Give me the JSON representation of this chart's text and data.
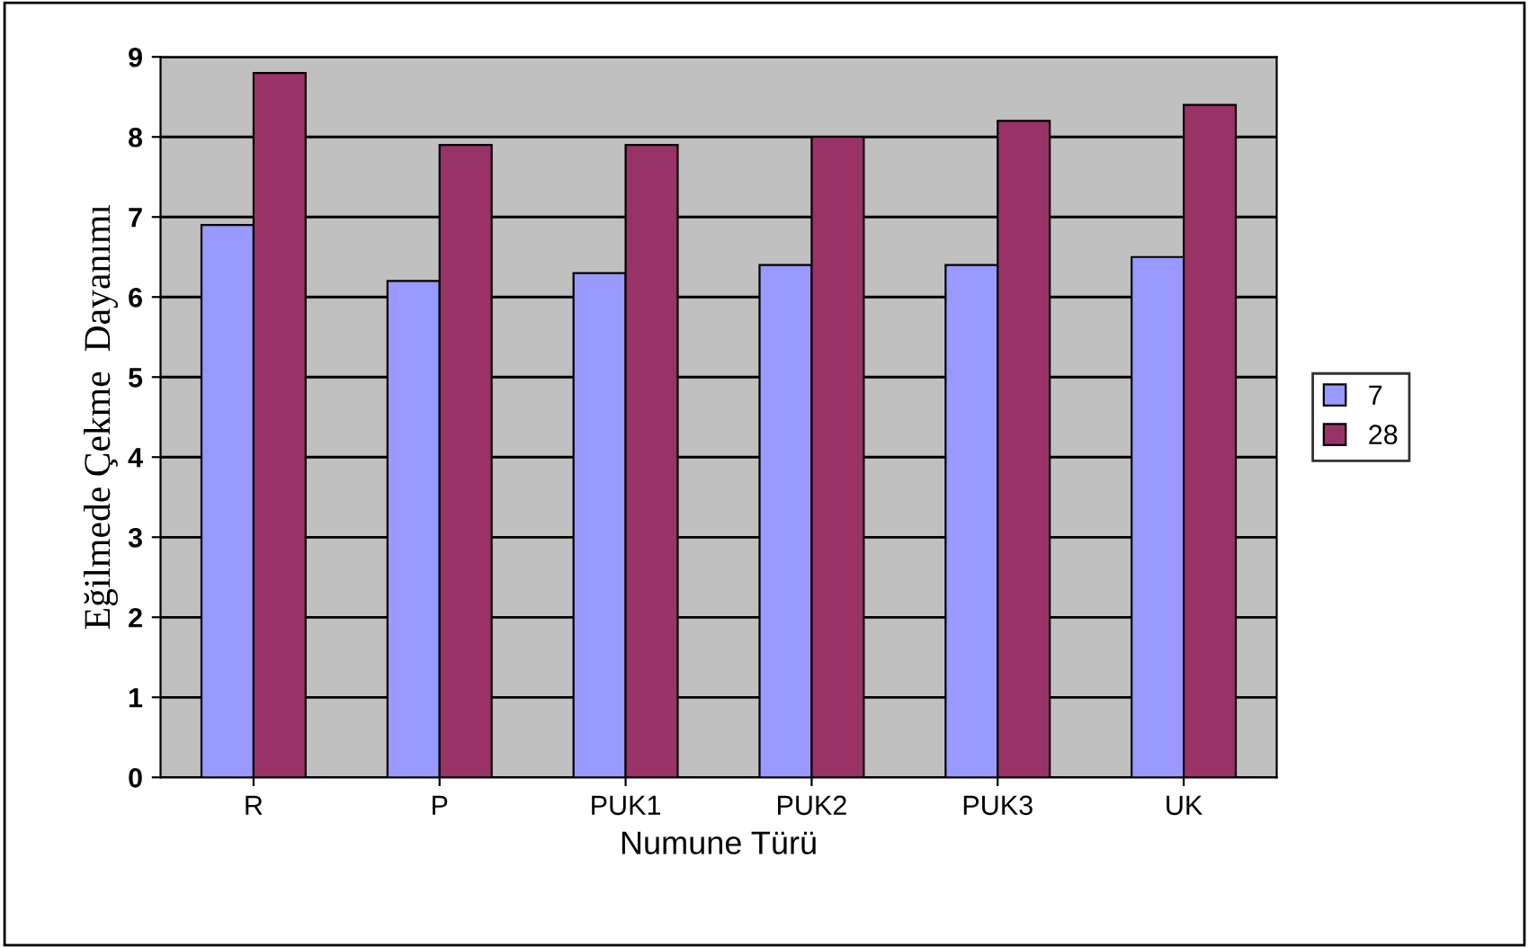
{
  "chart_data": {
    "type": "bar",
    "xlabel": "Numune Türü",
    "ylabel": "Eğilmede Çekme  Dayanımı",
    "categories": [
      "R",
      "P",
      "PUK1",
      "PUK2",
      "PUK3",
      "UK"
    ],
    "series": [
      {
        "name": "7",
        "color": "#9999ff",
        "values": [
          6.9,
          6.2,
          6.3,
          6.4,
          6.4,
          6.5
        ]
      },
      {
        "name": "28",
        "color": "#993366",
        "values": [
          8.8,
          7.9,
          7.9,
          8.0,
          8.2,
          8.4
        ]
      }
    ],
    "ylim": [
      0,
      9
    ],
    "yticks": [
      0,
      1,
      2,
      3,
      4,
      5,
      6,
      7,
      8,
      9
    ],
    "grid": "y",
    "legend": "right"
  }
}
